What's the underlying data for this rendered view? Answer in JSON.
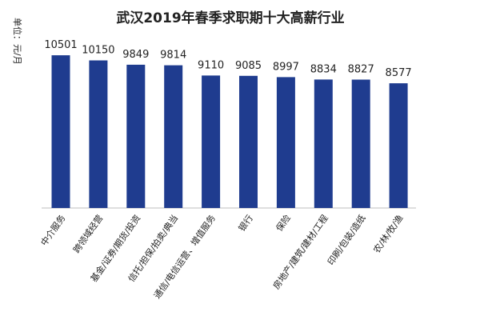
{
  "chart_data": {
    "type": "bar",
    "title": "武汉2019年春季求职期十大高薪行业",
    "ylabel": "单位：元/月",
    "categories": [
      "中介服务",
      "跨领域经营",
      "基金/证券/期货/投资",
      "信托/担保/拍卖/典当",
      "通信/电信运营、增值服务",
      "银行",
      "保险",
      "房地产/建筑/建材/工程",
      "印刷/包装/造纸",
      "农/林/牧/渔"
    ],
    "values": [
      10501,
      10150,
      9849,
      9814,
      9110,
      9085,
      8997,
      8834,
      8827,
      8577
    ],
    "ylim": [
      0,
      11000
    ],
    "grid": false,
    "legend": "none",
    "colors": {
      "bar": "#1f3c8f",
      "axis": "#bdbdbd",
      "text": "#222222"
    }
  }
}
